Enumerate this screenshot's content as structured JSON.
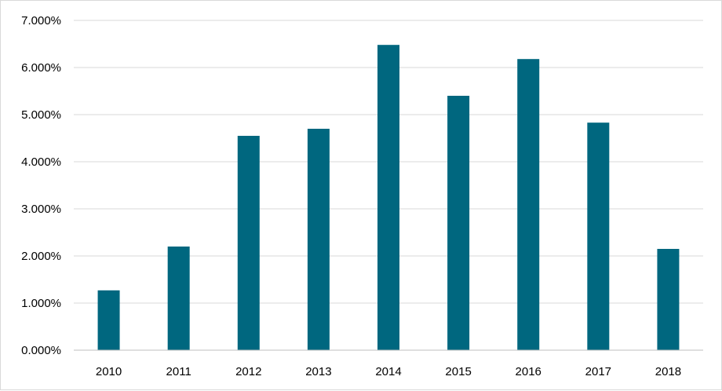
{
  "chart_data": {
    "type": "bar",
    "categories": [
      "2010",
      "2011",
      "2012",
      "2013",
      "2014",
      "2015",
      "2016",
      "2017",
      "2018"
    ],
    "values": [
      1.27,
      2.2,
      4.55,
      4.7,
      6.48,
      5.4,
      6.18,
      4.83,
      2.15
    ],
    "y_ticks": [
      0,
      1,
      2,
      3,
      4,
      5,
      6,
      7
    ],
    "y_tick_labels": [
      "0.000%",
      "1.000%",
      "2.000%",
      "3.000%",
      "4.000%",
      "5.000%",
      "6.000%",
      "7.000%"
    ],
    "title": "",
    "xlabel": "",
    "ylabel": "",
    "ylim": [
      0,
      7
    ],
    "grid": true,
    "legend": "none",
    "colors": {
      "bar": "#00677f",
      "grid": "#d9d9d9",
      "axis": "#bfbfbf",
      "text": "#000000"
    }
  }
}
